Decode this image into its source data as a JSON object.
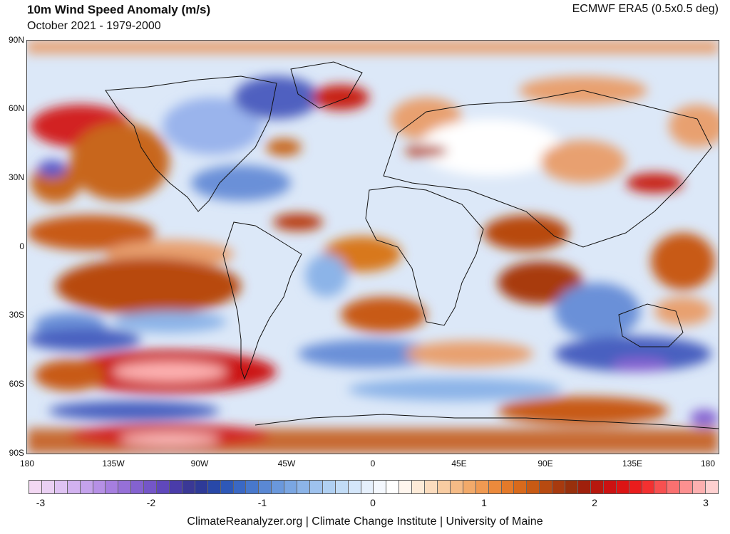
{
  "header": {
    "title": "10m Wind Speed Anomaly (m/s)",
    "subtitle": "October 2021 - 1979-2000",
    "source": "ECMWF ERA5 (0.5x0.5 deg)"
  },
  "map": {
    "lat_labels": [
      "90N",
      "60N",
      "30N",
      "0",
      "30S",
      "60S",
      "90S"
    ],
    "lon_labels": [
      "180",
      "135W",
      "90W",
      "45W",
      "0",
      "45E",
      "90E",
      "135E",
      "180"
    ]
  },
  "colorbar": {
    "range": [
      -3,
      3
    ],
    "tick_labels": [
      "-3",
      "-2",
      "-1",
      "0",
      "1",
      "2",
      "3"
    ],
    "colors": [
      "#f3d8f3",
      "#ead0f3",
      "#dfc3f3",
      "#d2b2f0",
      "#c4a2ec",
      "#b690e6",
      "#a67ee0",
      "#9670d8",
      "#8462d0",
      "#7456c8",
      "#6048bc",
      "#4a3caa",
      "#3a3896",
      "#2e3a98",
      "#2848a8",
      "#2e58b8",
      "#3a68c4",
      "#4878cc",
      "#5a88d4",
      "#6a98dc",
      "#7aa6e2",
      "#8cb4e8",
      "#9ec2ee",
      "#b0d0f2",
      "#c2dcf6",
      "#d4e6fa",
      "#e6f0fc",
      "#f4f8fe",
      "#ffffff",
      "#fff6ee",
      "#fdebd8",
      "#fbdcbe",
      "#f8cca2",
      "#f5bb86",
      "#f2aa6a",
      "#f09a52",
      "#ec8a3c",
      "#e47a2a",
      "#d86a1c",
      "#c85a14",
      "#b84a10",
      "#a83a0e",
      "#98300c",
      "#a0200c",
      "#b8180e",
      "#cc1212",
      "#dc1414",
      "#ea1c1c",
      "#f43030",
      "#f85050",
      "#fa7070",
      "#fc9090",
      "#fdb0b0",
      "#fed0d0"
    ]
  }
}
